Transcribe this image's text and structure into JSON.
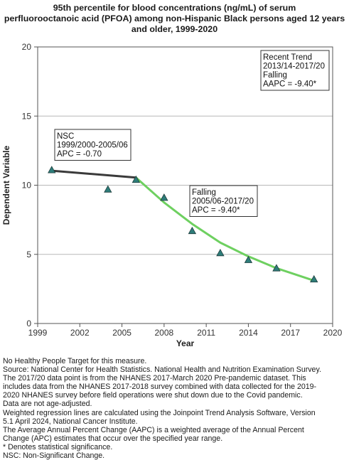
{
  "chart_data": {
    "type": "line",
    "title_lines": [
      "95th percentile for blood concentrations (ng/mL) of serum",
      "perfluorooctanoic acid (PFOA) among non-Hispanic Black persons aged 12 years",
      "and older, 1999-2020"
    ],
    "xlabel": "Year",
    "ylabel": "Dependent Variable",
    "xlim": [
      1999,
      2020
    ],
    "ylim": [
      0,
      20
    ],
    "xticks": [
      1999,
      2002,
      2005,
      2008,
      2011,
      2014,
      2017,
      2020
    ],
    "yticks": [
      0,
      5,
      10,
      15,
      20
    ],
    "grid": "horizontal",
    "observed": {
      "x": [
        2000,
        2004,
        2006,
        2008,
        2010,
        2012,
        2014,
        2016,
        2018.67
      ],
      "y": [
        11.1,
        9.7,
        10.4,
        9.1,
        6.7,
        5.1,
        4.6,
        4.0,
        3.2
      ],
      "color": "#2e7d7a"
    },
    "series": [
      {
        "segment": "nsc",
        "color": "#3a3a3a",
        "x": [
          2000,
          2006
        ],
        "y": [
          11.05,
          10.55
        ]
      },
      {
        "segment": "falling",
        "color": "#6ed060",
        "x": [
          2006,
          2008,
          2010,
          2012,
          2014,
          2016,
          2018.67
        ],
        "y": [
          10.55,
          8.75,
          7.2,
          5.85,
          4.85,
          4.0,
          3.1
        ]
      }
    ],
    "annotations": [
      {
        "id": "nsc",
        "lines": [
          "NSC",
          "1999/2000-2005/06",
          "APC = -0.70"
        ]
      },
      {
        "id": "falling",
        "lines": [
          "Falling",
          "2005/06-2017/20",
          "APC = -9.40*"
        ]
      },
      {
        "id": "recent",
        "lines": [
          "Recent Trend",
          "2013/14-2017/20",
          "Falling",
          "AAPC = -9.40*"
        ]
      }
    ]
  },
  "footnotes": [
    "No Healthy People Target for this measure.",
    "Source: National Center for Health Statistics. National Health and Nutrition Examination Survey.",
    "The 2017/20 data point is from the NHANES 2017-March 2020 Pre-pandemic dataset. This",
    "includes data from the NHANES 2017-2018 survey combined with data collected for the 2019-",
    "2020 NHANES survey before field operations were shut down due to the Covid pandemic.",
    "Data are not age-adjusted.",
    "Weighted regression lines are calculated using the Joinpoint Trend Analysis Software, Version",
    "5.1 April 2024, National Cancer Institute.",
    "The Average Annual Percent Change (AAPC) is a weighted average of the Annual Percent",
    "Change (APC) estimates that occur over the specified year range.",
    "* Denotes statistical significance.",
    "NSC: Non-Significant Change."
  ]
}
